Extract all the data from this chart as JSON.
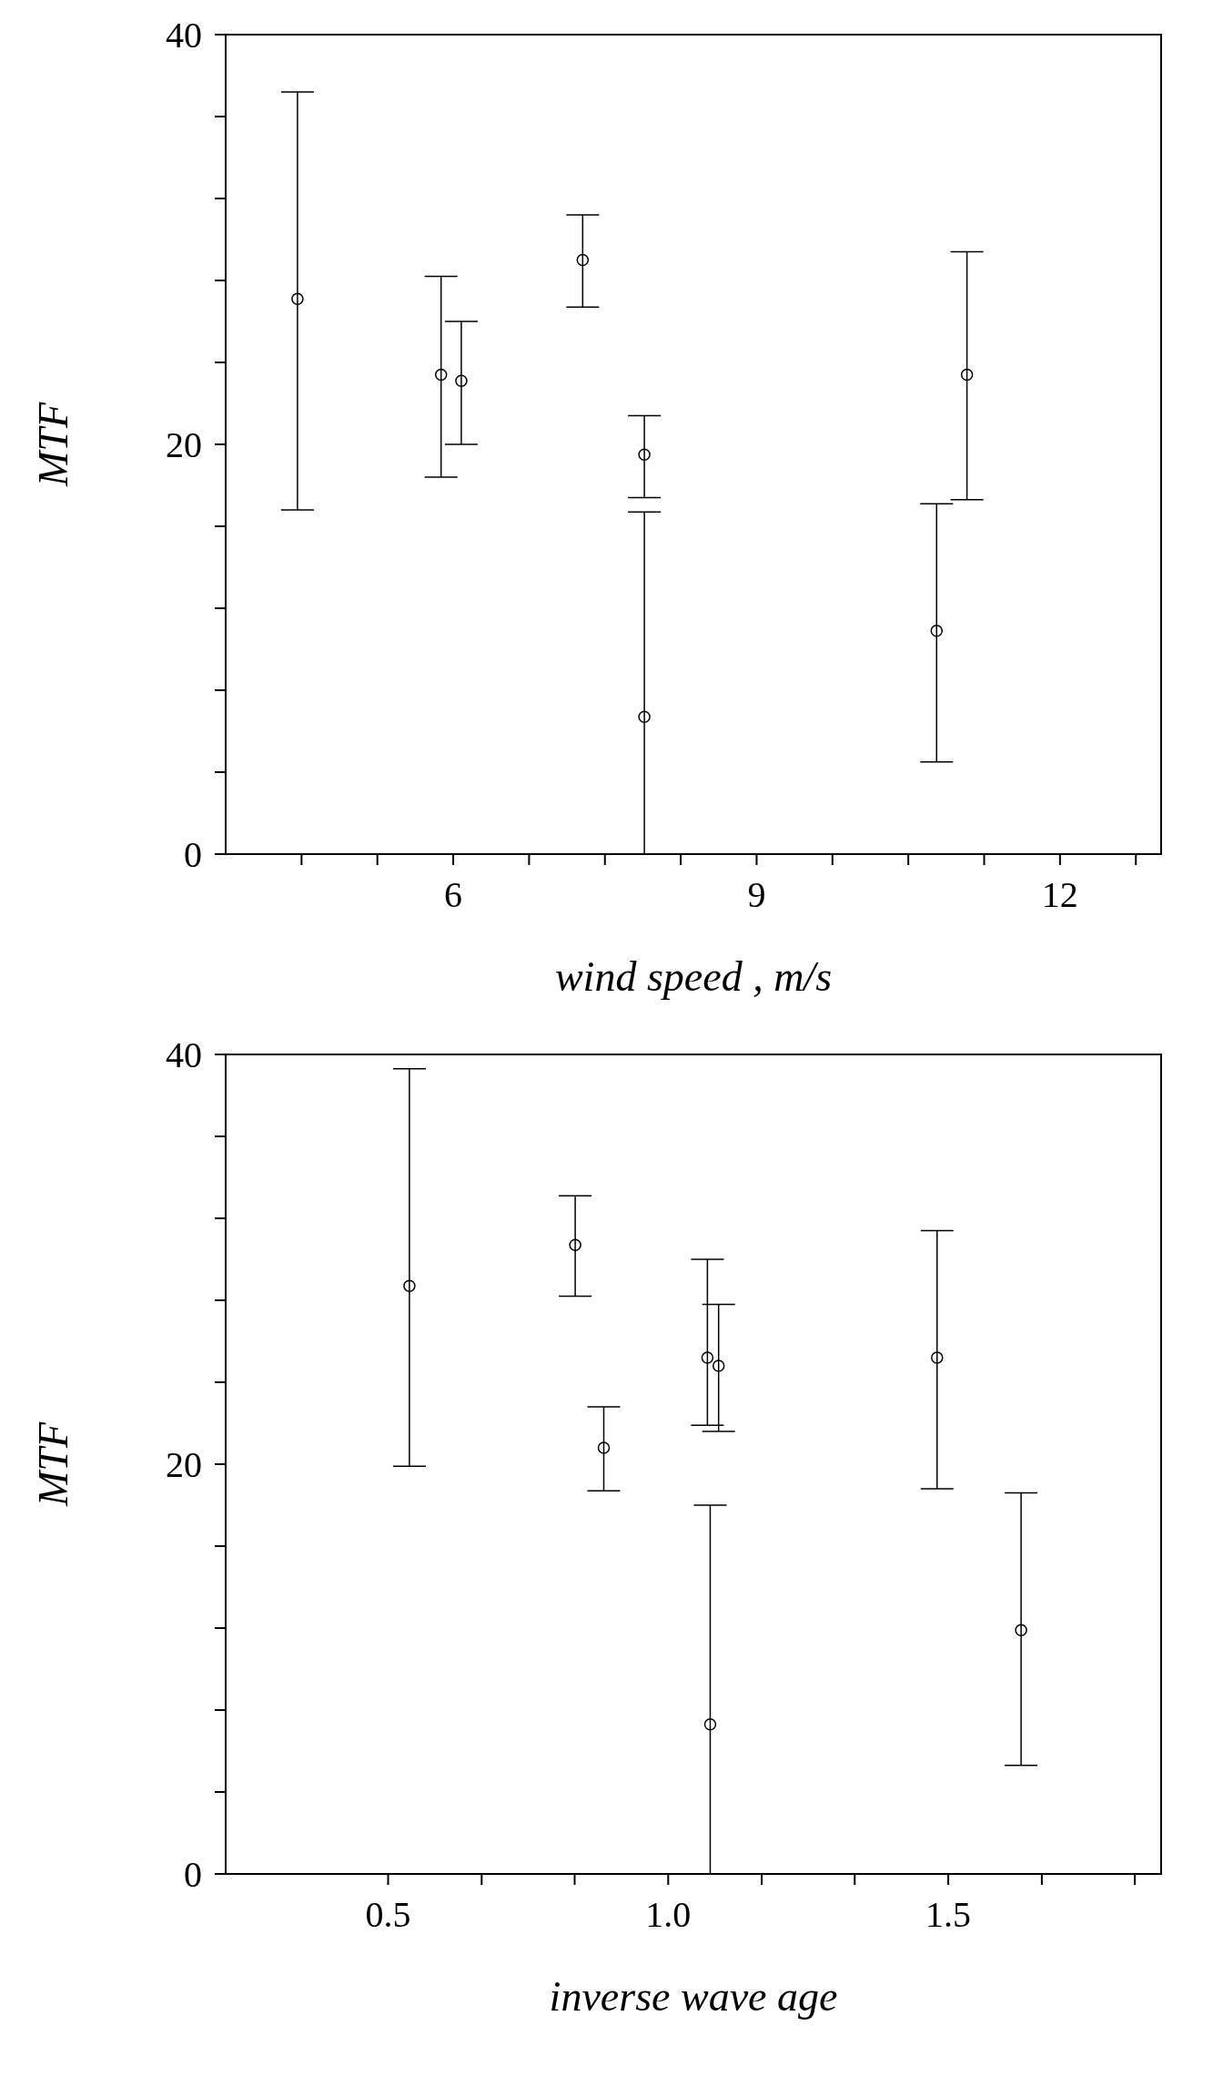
{
  "chart_data": [
    {
      "type": "scatter",
      "xlabel": "wind speed , m/s",
      "ylabel": "MTF",
      "marker": "circle",
      "xlim": [
        3.75,
        13
      ],
      "ylim": [
        0,
        40
      ],
      "xticks": [
        {
          "value": 4.5,
          "label": null
        },
        {
          "value": 5.25,
          "label": null
        },
        6,
        {
          "value": 6.75,
          "label": null
        },
        {
          "value": 7.5,
          "label": null
        },
        {
          "value": 8.25,
          "label": null
        },
        9,
        {
          "value": 9.75,
          "label": null
        },
        {
          "value": 10.5,
          "label": null
        },
        {
          "value": 11.25,
          "label": null
        },
        12,
        {
          "value": 12.75,
          "label": null
        }
      ],
      "yticks": [
        0,
        {
          "value": 4,
          "label": null
        },
        {
          "value": 8,
          "label": null
        },
        {
          "value": 12,
          "label": null
        },
        {
          "value": 16,
          "label": null
        },
        20,
        {
          "value": 24,
          "label": null
        },
        {
          "value": 28,
          "label": null
        },
        {
          "value": 32,
          "label": null
        },
        {
          "value": 36,
          "label": null
        },
        40
      ],
      "series": [
        {
          "color": "#000000",
          "x": [
            4.46,
            5.88,
            6.08,
            7.28,
            7.89,
            7.89,
            10.78,
            11.08
          ],
          "values": [
            27.1,
            23.4,
            23.1,
            29.0,
            19.5,
            6.7,
            10.9,
            23.4
          ],
          "errors": [
            [
              16.8,
              37.2
            ],
            [
              18.4,
              28.2
            ],
            [
              20.0,
              26.0
            ],
            [
              26.7,
              31.2
            ],
            [
              17.4,
              21.4
            ],
            [
              0,
              16.7
            ],
            [
              4.5,
              17.1
            ],
            [
              17.3,
              29.4
            ]
          ]
        }
      ]
    },
    {
      "type": "scatter",
      "xlabel": "inverse wave age",
      "ylabel": "MTF",
      "marker": "circle",
      "xlim": [
        0.21,
        1.88
      ],
      "ylim": [
        0,
        40
      ],
      "xticks": [
        {
          "value": 0.5,
          "label": "0.5"
        },
        {
          "value": 0.667,
          "label": null
        },
        {
          "value": 0.833,
          "label": null
        },
        {
          "value": 1.0,
          "label": "1.0"
        },
        {
          "value": 1.167,
          "label": null
        },
        {
          "value": 1.333,
          "label": null
        },
        {
          "value": 1.5,
          "label": "1.5"
        },
        {
          "value": 1.667,
          "label": null
        },
        {
          "value": 1.833,
          "label": null
        }
      ],
      "yticks": [
        0,
        {
          "value": 4,
          "label": null
        },
        {
          "value": 8,
          "label": null
        },
        {
          "value": 12,
          "label": null
        },
        {
          "value": 16,
          "label": null
        },
        20,
        {
          "value": 24,
          "label": null
        },
        {
          "value": 28,
          "label": null
        },
        {
          "value": 32,
          "label": null
        },
        {
          "value": 36,
          "label": null
        },
        40
      ],
      "series": [
        {
          "color": "#000000",
          "x": [
            0.538,
            0.834,
            0.885,
            1.07,
            1.09,
            1.075,
            1.48,
            1.63
          ],
          "values": [
            28.7,
            30.7,
            20.8,
            25.2,
            24.8,
            7.3,
            25.2,
            11.9
          ],
          "errors": [
            [
              19.9,
              39.3
            ],
            [
              28.2,
              33.1
            ],
            [
              18.7,
              22.8
            ],
            [
              21.9,
              30.0
            ],
            [
              21.6,
              27.8
            ],
            [
              0,
              18.0
            ],
            [
              18.8,
              31.4
            ],
            [
              5.3,
              18.6
            ]
          ]
        }
      ]
    }
  ]
}
